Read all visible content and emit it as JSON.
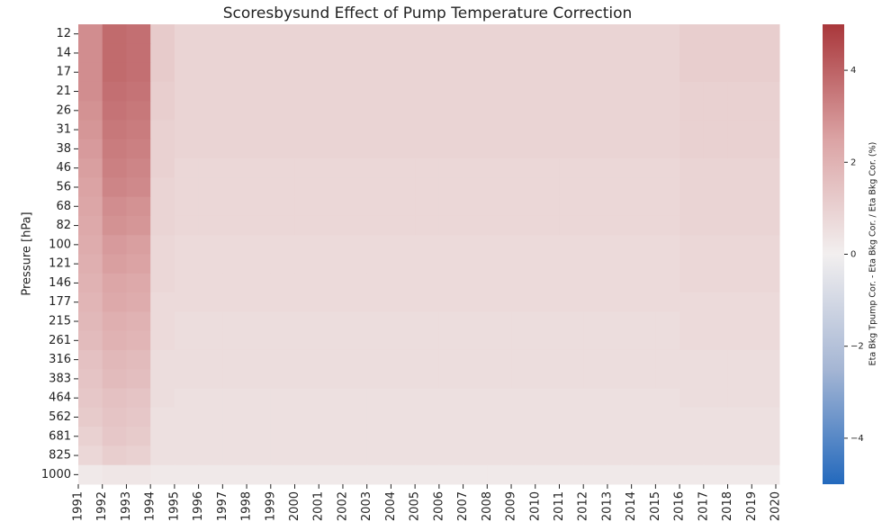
{
  "chart_data": {
    "type": "heatmap",
    "title": "Scoresbysund Effect of Pump Temperature Correction",
    "ylabel": "Pressure [hPa]",
    "colorbar_label": "Eta Bkg Tpump Cor. - Eta Bkg Cor. / Eta Bkg Cor.  (%)",
    "y_categories": [
      "12",
      "14",
      "17",
      "21",
      "26",
      "31",
      "38",
      "46",
      "56",
      "68",
      "82",
      "100",
      "121",
      "146",
      "177",
      "215",
      "261",
      "316",
      "383",
      "464",
      "562",
      "681",
      "825",
      "1000"
    ],
    "x_edges": [
      1991,
      1992,
      1993,
      1994,
      1995,
      1996,
      1997,
      1998,
      1999,
      2000,
      2001,
      2002,
      2003,
      2004,
      2005,
      2006,
      2007,
      2008,
      2009,
      2010,
      2011,
      2012,
      2013,
      2014,
      2015,
      2016,
      2017,
      2018,
      2019,
      2020
    ],
    "xlim": [
      1991,
      2020.15
    ],
    "xticks": [
      1991,
      1992,
      1993,
      1994,
      1995,
      1996,
      1997,
      1998,
      1999,
      2000,
      2001,
      2002,
      2003,
      2004,
      2005,
      2006,
      2007,
      2008,
      2009,
      2010,
      2011,
      2012,
      2013,
      2014,
      2015,
      2016,
      2017,
      2018,
      2019,
      2020
    ],
    "zlim": [
      -5,
      5
    ],
    "zticks": [
      {
        "value": -4,
        "label": "−4"
      },
      {
        "value": -2,
        "label": "−2"
      },
      0,
      2,
      4
    ],
    "colormap": [
      "#2369bd",
      "#a5b6d4",
      "#f2efef",
      "#dba3a4",
      "#a9373b"
    ],
    "z": [
      [
        3.0,
        3.8,
        3.7,
        1.2,
        0.9,
        0.9,
        0.9,
        0.9,
        0.9,
        0.9,
        0.9,
        0.9,
        0.9,
        0.9,
        0.9,
        0.9,
        0.9,
        0.9,
        0.9,
        0.9,
        0.9,
        0.9,
        0.9,
        0.9,
        0.9,
        1.1,
        1.1,
        1.1,
        1.1
      ],
      [
        3.0,
        3.8,
        3.7,
        1.2,
        0.9,
        0.9,
        0.9,
        0.9,
        0.9,
        0.9,
        0.9,
        0.9,
        0.9,
        0.9,
        0.9,
        0.9,
        0.9,
        0.9,
        0.9,
        0.9,
        0.9,
        0.9,
        0.9,
        0.9,
        0.9,
        1.1,
        1.1,
        1.1,
        1.1
      ],
      [
        3.0,
        3.8,
        3.7,
        1.2,
        0.9,
        0.9,
        0.9,
        0.9,
        0.9,
        0.9,
        0.9,
        0.9,
        0.9,
        0.9,
        0.9,
        0.9,
        0.9,
        0.9,
        0.9,
        0.9,
        0.9,
        0.9,
        0.9,
        0.9,
        0.9,
        1.1,
        1.1,
        1.1,
        1.1
      ],
      [
        3.0,
        3.7,
        3.6,
        1.1,
        0.9,
        0.9,
        0.9,
        0.9,
        0.9,
        0.9,
        0.9,
        0.9,
        0.9,
        0.9,
        0.9,
        0.9,
        0.9,
        0.9,
        0.9,
        0.9,
        0.9,
        0.9,
        0.9,
        0.9,
        0.9,
        1.0,
        1.0,
        1.0,
        1.0
      ],
      [
        2.9,
        3.6,
        3.5,
        1.1,
        0.9,
        0.9,
        0.9,
        0.9,
        0.9,
        0.9,
        0.9,
        0.9,
        0.9,
        0.9,
        0.9,
        0.9,
        0.9,
        0.9,
        0.9,
        0.9,
        0.9,
        0.9,
        0.9,
        0.9,
        0.9,
        1.0,
        1.0,
        1.0,
        1.0
      ],
      [
        2.8,
        3.5,
        3.4,
        1.0,
        0.9,
        0.9,
        0.9,
        0.9,
        0.9,
        0.9,
        0.9,
        0.9,
        0.9,
        0.9,
        0.9,
        0.9,
        0.9,
        0.9,
        0.9,
        0.9,
        0.9,
        0.9,
        0.9,
        0.9,
        0.9,
        1.0,
        1.0,
        1.0,
        1.0
      ],
      [
        2.7,
        3.4,
        3.3,
        1.0,
        0.9,
        0.9,
        0.9,
        0.9,
        0.9,
        0.9,
        0.9,
        0.9,
        0.9,
        0.9,
        0.9,
        0.9,
        0.9,
        0.9,
        0.9,
        0.9,
        0.9,
        0.9,
        0.9,
        0.9,
        0.9,
        1.0,
        1.0,
        1.0,
        1.0
      ],
      [
        2.6,
        3.3,
        3.2,
        1.0,
        0.8,
        0.8,
        0.8,
        0.8,
        0.8,
        0.8,
        0.8,
        0.8,
        0.8,
        0.8,
        0.8,
        0.8,
        0.8,
        0.8,
        0.8,
        0.8,
        0.8,
        0.8,
        0.8,
        0.8,
        0.8,
        0.9,
        0.9,
        0.9,
        0.9
      ],
      [
        2.5,
        3.2,
        3.1,
        0.9,
        0.8,
        0.8,
        0.8,
        0.8,
        0.8,
        0.8,
        0.8,
        0.8,
        0.8,
        0.8,
        0.8,
        0.8,
        0.8,
        0.8,
        0.8,
        0.8,
        0.8,
        0.8,
        0.8,
        0.8,
        0.8,
        0.9,
        0.9,
        0.9,
        0.9
      ],
      [
        2.4,
        3.0,
        2.9,
        0.9,
        0.8,
        0.8,
        0.8,
        0.8,
        0.8,
        0.8,
        0.8,
        0.8,
        0.8,
        0.8,
        0.8,
        0.8,
        0.8,
        0.8,
        0.8,
        0.8,
        0.8,
        0.8,
        0.8,
        0.8,
        0.8,
        0.9,
        0.9,
        0.9,
        0.9
      ],
      [
        2.3,
        2.9,
        2.8,
        0.9,
        0.8,
        0.8,
        0.8,
        0.8,
        0.8,
        0.8,
        0.8,
        0.8,
        0.8,
        0.8,
        0.8,
        0.8,
        0.8,
        0.8,
        0.8,
        0.8,
        0.8,
        0.8,
        0.8,
        0.8,
        0.8,
        0.9,
        0.9,
        0.9,
        0.9
      ],
      [
        2.2,
        2.7,
        2.6,
        0.8,
        0.7,
        0.7,
        0.7,
        0.7,
        0.7,
        0.7,
        0.7,
        0.7,
        0.7,
        0.7,
        0.7,
        0.7,
        0.7,
        0.7,
        0.7,
        0.7,
        0.7,
        0.7,
        0.7,
        0.7,
        0.7,
        0.8,
        0.8,
        0.8,
        0.8
      ],
      [
        2.1,
        2.6,
        2.5,
        0.8,
        0.7,
        0.7,
        0.7,
        0.7,
        0.7,
        0.7,
        0.7,
        0.7,
        0.7,
        0.7,
        0.7,
        0.7,
        0.7,
        0.7,
        0.7,
        0.7,
        0.7,
        0.7,
        0.7,
        0.7,
        0.7,
        0.8,
        0.8,
        0.8,
        0.8
      ],
      [
        2.0,
        2.4,
        2.3,
        0.8,
        0.7,
        0.7,
        0.7,
        0.7,
        0.7,
        0.7,
        0.7,
        0.7,
        0.7,
        0.7,
        0.7,
        0.7,
        0.7,
        0.7,
        0.7,
        0.7,
        0.7,
        0.7,
        0.7,
        0.7,
        0.7,
        0.8,
        0.8,
        0.8,
        0.8
      ],
      [
        1.9,
        2.3,
        2.2,
        0.7,
        0.7,
        0.7,
        0.7,
        0.7,
        0.7,
        0.7,
        0.7,
        0.7,
        0.7,
        0.7,
        0.7,
        0.7,
        0.7,
        0.7,
        0.7,
        0.7,
        0.7,
        0.7,
        0.7,
        0.7,
        0.7,
        0.7,
        0.7,
        0.7,
        0.7
      ],
      [
        1.8,
        2.1,
        2.0,
        0.7,
        0.6,
        0.6,
        0.6,
        0.6,
        0.6,
        0.6,
        0.6,
        0.6,
        0.6,
        0.6,
        0.6,
        0.6,
        0.6,
        0.6,
        0.6,
        0.6,
        0.6,
        0.6,
        0.6,
        0.6,
        0.6,
        0.7,
        0.7,
        0.7,
        0.7
      ],
      [
        1.7,
        2.0,
        1.9,
        0.7,
        0.6,
        0.6,
        0.6,
        0.6,
        0.6,
        0.6,
        0.6,
        0.6,
        0.6,
        0.6,
        0.6,
        0.6,
        0.6,
        0.6,
        0.6,
        0.6,
        0.6,
        0.6,
        0.6,
        0.6,
        0.6,
        0.7,
        0.7,
        0.7,
        0.7
      ],
      [
        1.5,
        1.8,
        1.7,
        0.6,
        0.6,
        0.6,
        0.6,
        0.6,
        0.6,
        0.6,
        0.6,
        0.6,
        0.6,
        0.6,
        0.6,
        0.6,
        0.6,
        0.6,
        0.6,
        0.6,
        0.6,
        0.6,
        0.6,
        0.6,
        0.6,
        0.6,
        0.6,
        0.6,
        0.6
      ],
      [
        1.4,
        1.7,
        1.6,
        0.6,
        0.6,
        0.6,
        0.6,
        0.6,
        0.6,
        0.6,
        0.6,
        0.6,
        0.6,
        0.6,
        0.6,
        0.6,
        0.6,
        0.6,
        0.6,
        0.6,
        0.6,
        0.6,
        0.6,
        0.6,
        0.6,
        0.6,
        0.6,
        0.6,
        0.6
      ],
      [
        1.3,
        1.5,
        1.4,
        0.6,
        0.5,
        0.5,
        0.5,
        0.5,
        0.5,
        0.5,
        0.5,
        0.5,
        0.5,
        0.5,
        0.5,
        0.5,
        0.5,
        0.5,
        0.5,
        0.5,
        0.5,
        0.5,
        0.5,
        0.5,
        0.5,
        0.6,
        0.6,
        0.6,
        0.6
      ],
      [
        1.2,
        1.4,
        1.3,
        0.5,
        0.5,
        0.5,
        0.5,
        0.5,
        0.5,
        0.5,
        0.5,
        0.5,
        0.5,
        0.5,
        0.5,
        0.5,
        0.5,
        0.5,
        0.5,
        0.5,
        0.5,
        0.5,
        0.5,
        0.5,
        0.5,
        0.5,
        0.5,
        0.5,
        0.5
      ],
      [
        1.0,
        1.3,
        1.2,
        0.5,
        0.5,
        0.5,
        0.5,
        0.5,
        0.5,
        0.5,
        0.5,
        0.5,
        0.5,
        0.5,
        0.5,
        0.5,
        0.5,
        0.5,
        0.5,
        0.5,
        0.5,
        0.5,
        0.5,
        0.5,
        0.5,
        0.5,
        0.5,
        0.5,
        0.5
      ],
      [
        0.8,
        1.1,
        1.0,
        0.5,
        0.5,
        0.5,
        0.5,
        0.5,
        0.5,
        0.5,
        0.5,
        0.5,
        0.5,
        0.5,
        0.5,
        0.5,
        0.5,
        0.5,
        0.5,
        0.5,
        0.5,
        0.5,
        0.5,
        0.5,
        0.5,
        0.5,
        0.5,
        0.5,
        0.5
      ],
      [
        0.2,
        0.3,
        0.3,
        0.2,
        0.2,
        0.2,
        0.2,
        0.2,
        0.2,
        0.2,
        0.2,
        0.2,
        0.2,
        0.2,
        0.2,
        0.2,
        0.2,
        0.2,
        0.2,
        0.2,
        0.2,
        0.2,
        0.2,
        0.2,
        0.2,
        0.2,
        0.2,
        0.2,
        0.2
      ]
    ]
  }
}
